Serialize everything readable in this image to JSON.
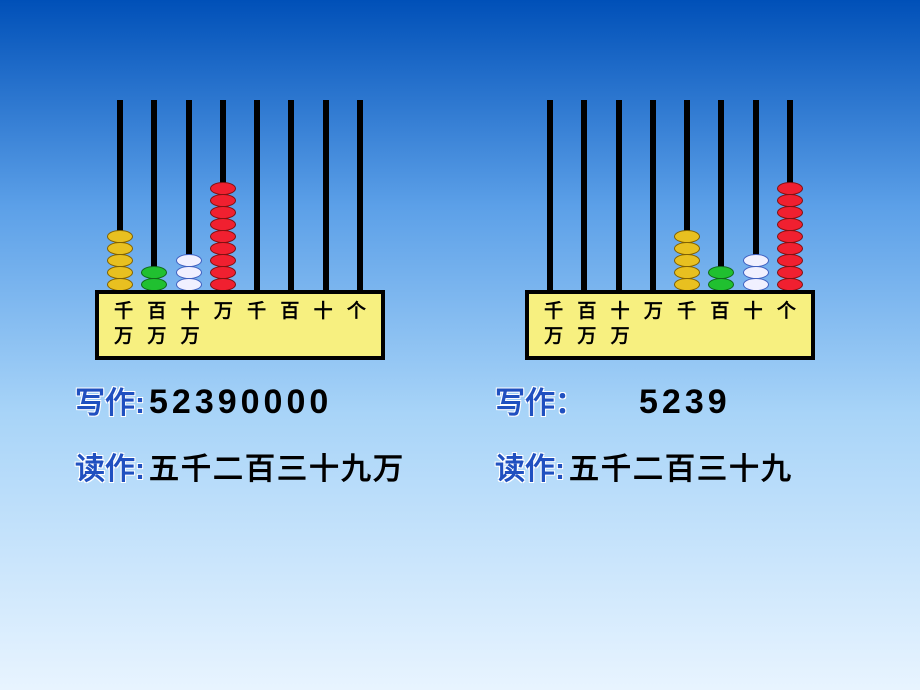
{
  "bead_colors": {
    "yellow": "#e8c020",
    "green": "#20c030",
    "blue_white": "#f0f0ff",
    "red": "#f02030"
  },
  "bead_borders": {
    "yellow": "#806000",
    "green": "#106818",
    "blue_white": "#4060c0",
    "red": "#801010"
  },
  "place_labels": [
    {
      "top": "千",
      "bottom": "万"
    },
    {
      "top": "百",
      "bottom": "万"
    },
    {
      "top": "十",
      "bottom": "万"
    },
    {
      "top": "",
      "bottom": "万"
    },
    {
      "top": "千",
      "bottom": ""
    },
    {
      "top": "百",
      "bottom": ""
    },
    {
      "top": "十",
      "bottom": ""
    },
    {
      "top": "个",
      "bottom": ""
    }
  ],
  "left": {
    "beads": [
      {
        "count": 5,
        "color": "yellow"
      },
      {
        "count": 2,
        "color": "green"
      },
      {
        "count": 3,
        "color": "blue_white"
      },
      {
        "count": 9,
        "color": "red"
      },
      {
        "count": 0,
        "color": ""
      },
      {
        "count": 0,
        "color": ""
      },
      {
        "count": 0,
        "color": ""
      },
      {
        "count": 0,
        "color": ""
      }
    ],
    "write_label": "写作:",
    "write_value": "52390000",
    "read_label": "读作:",
    "read_value": "五千二百三十九万"
  },
  "right": {
    "beads": [
      {
        "count": 0,
        "color": ""
      },
      {
        "count": 0,
        "color": ""
      },
      {
        "count": 0,
        "color": ""
      },
      {
        "count": 0,
        "color": ""
      },
      {
        "count": 5,
        "color": "yellow"
      },
      {
        "count": 2,
        "color": "green"
      },
      {
        "count": 3,
        "color": "blue_white"
      },
      {
        "count": 9,
        "color": "red"
      }
    ],
    "write_label": "写作：",
    "write_value": "5239",
    "read_label": "读作:",
    "read_value": "五千二百三十九"
  },
  "style": {
    "base_bg": "#f7f080",
    "rod_color": "#000000",
    "label_color": "#2050c0"
  }
}
